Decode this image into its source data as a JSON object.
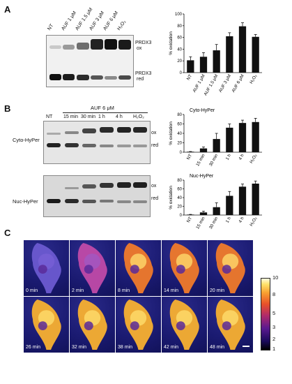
{
  "panelA": {
    "letter": "A",
    "lanes": [
      "NT",
      "AUF 1 μM",
      "AUF 1.5 μM",
      "AUF 3 μM",
      "AUF 6 μM",
      "H₂O₂"
    ],
    "band_label_top": [
      "PRDX3",
      "ox"
    ],
    "band_label_bottom": [
      "PRDX3",
      "red"
    ]
  },
  "panelB": {
    "letter": "B",
    "treatment": "AUF 6 μM",
    "lanes": [
      "NT",
      "15 min",
      "30 min",
      "1 h",
      "4 h",
      "H₂O₂"
    ],
    "blot1_name": "Cyto-HyPer",
    "blot2_name": "Nuc-HyPer",
    "ox_label": "ox",
    "red_label": "red"
  },
  "panelC": {
    "letter": "C",
    "times": [
      "0 min",
      "2 min",
      "8 min",
      "14 min",
      "20 min",
      "26 min",
      "32 min",
      "38 min",
      "42 min",
      "48 min"
    ],
    "colorbar_ticks": [
      "10",
      "8",
      "5",
      "3",
      "2",
      "1"
    ]
  },
  "chart_data": [
    {
      "type": "bar",
      "categories": [
        "NT",
        "AUF 1 μM",
        "AUF 1.5 μM",
        "AUF 3 μM",
        "AUF 6 μM",
        "H₂O₂"
      ],
      "values": [
        21,
        27,
        38,
        62,
        79,
        61
      ],
      "errors": [
        6,
        7,
        10,
        6,
        6,
        4
      ],
      "ylabel": "% oxidation",
      "ylim": [
        0,
        100
      ],
      "yticks": [
        0,
        20,
        40,
        60,
        80,
        100
      ]
    },
    {
      "type": "bar",
      "title": "Cyto-HyPer",
      "categories": [
        "NT",
        "15 min",
        "30 min",
        "1 h",
        "4 h",
        "H₂O₂"
      ],
      "values": [
        1,
        8,
        28,
        52,
        62,
        64
      ],
      "errors": [
        0.5,
        3,
        12,
        8,
        6,
        8
      ],
      "ylabel": "% oxidation",
      "ylim": [
        0,
        80
      ],
      "yticks": [
        0,
        20,
        40,
        60,
        80
      ]
    },
    {
      "type": "bar",
      "title": "Nuc-HyPer",
      "categories": [
        "NT",
        "15 min",
        "30 min",
        "1 h",
        "4 h",
        "H₂O₂"
      ],
      "values": [
        1,
        6,
        18,
        44,
        65,
        72
      ],
      "errors": [
        0.5,
        3,
        10,
        10,
        6,
        6
      ],
      "ylabel": "% oxidation",
      "ylim": [
        0,
        80
      ],
      "yticks": [
        0,
        20,
        40,
        60,
        80
      ]
    }
  ]
}
